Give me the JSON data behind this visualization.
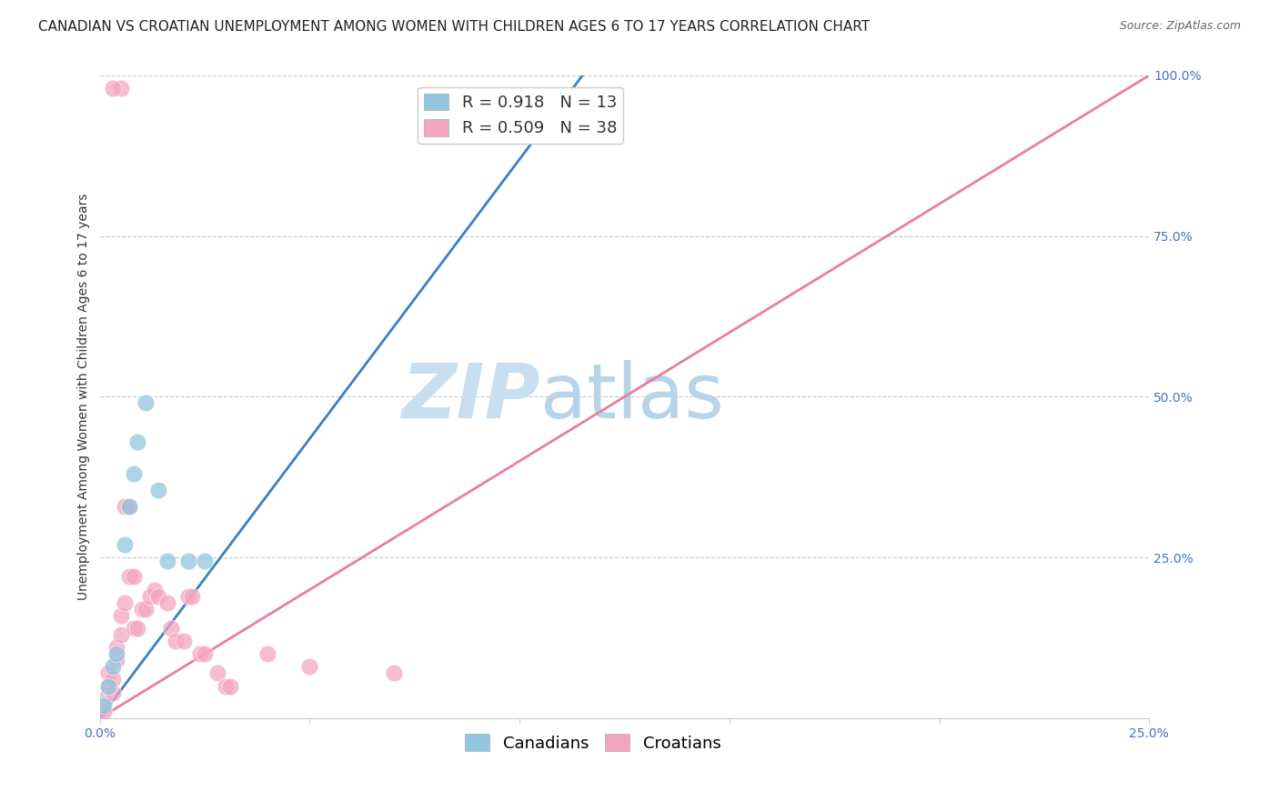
{
  "title": "CANADIAN VS CROATIAN UNEMPLOYMENT AMONG WOMEN WITH CHILDREN AGES 6 TO 17 YEARS CORRELATION CHART",
  "source": "Source: ZipAtlas.com",
  "ylabel": "Unemployment Among Women with Children Ages 6 to 17 years",
  "xlabel": "",
  "watermark_zip": "ZIP",
  "watermark_atlas": "atlas",
  "xlim": [
    0,
    0.25
  ],
  "ylim": [
    0,
    1.0
  ],
  "xtick_vals": [
    0.0,
    0.05,
    0.1,
    0.15,
    0.2,
    0.25
  ],
  "xtick_labels": [
    "0.0%",
    "",
    "",
    "",
    "",
    "25.0%"
  ],
  "ytick_vals": [
    0.0,
    0.25,
    0.5,
    0.75,
    1.0
  ],
  "ytick_labels_right": [
    "",
    "25.0%",
    "50.0%",
    "75.0%",
    "100.0%"
  ],
  "canadian_R": 0.918,
  "canadian_N": 13,
  "croatian_R": 0.509,
  "croatian_N": 38,
  "canadian_color": "#92c5de",
  "croatian_color": "#f4a6c0",
  "canadian_line_color": "#3b7fc4",
  "croatian_line_color": "#e87fa0",
  "canadian_x": [
    0.001,
    0.002,
    0.003,
    0.004,
    0.006,
    0.007,
    0.008,
    0.009,
    0.011,
    0.014,
    0.016,
    0.021,
    0.025
  ],
  "canadian_y": [
    0.02,
    0.05,
    0.08,
    0.1,
    0.27,
    0.33,
    0.38,
    0.43,
    0.49,
    0.355,
    0.245,
    0.245,
    0.245
  ],
  "croatian_x": [
    0.001,
    0.001,
    0.002,
    0.002,
    0.003,
    0.003,
    0.004,
    0.004,
    0.005,
    0.005,
    0.006,
    0.006,
    0.007,
    0.007,
    0.008,
    0.008,
    0.009,
    0.01,
    0.011,
    0.012,
    0.013,
    0.014,
    0.016,
    0.017,
    0.018,
    0.02,
    0.021,
    0.022,
    0.024,
    0.025,
    0.028,
    0.03,
    0.031,
    0.04,
    0.05,
    0.07,
    0.005,
    0.003
  ],
  "croatian_y": [
    0.01,
    0.03,
    0.05,
    0.07,
    0.04,
    0.06,
    0.09,
    0.11,
    0.13,
    0.16,
    0.18,
    0.33,
    0.33,
    0.22,
    0.22,
    0.14,
    0.14,
    0.17,
    0.17,
    0.19,
    0.2,
    0.19,
    0.18,
    0.14,
    0.12,
    0.12,
    0.19,
    0.19,
    0.1,
    0.1,
    0.07,
    0.05,
    0.05,
    0.1,
    0.08,
    0.07,
    0.98,
    0.98
  ],
  "title_fontsize": 11,
  "source_fontsize": 9,
  "axis_label_fontsize": 10,
  "tick_fontsize": 10,
  "legend_fontsize": 12,
  "watermark_fontsize": 60,
  "background_color": "#ffffff",
  "grid_color": "#c8c8c8",
  "right_ytick_color": "#4472c4",
  "xtick_color": "#4472c4"
}
